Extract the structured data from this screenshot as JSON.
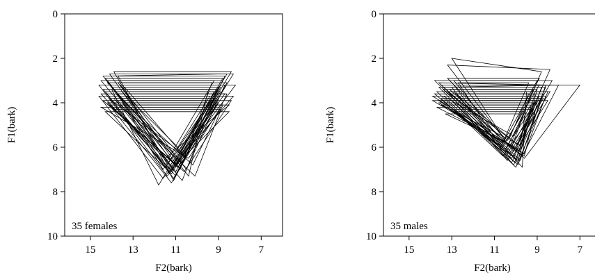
{
  "chart_data": [
    {
      "type": "line",
      "chart_kind": "vowel triangles (F2 vs F1, bark)",
      "xlabel": "F2(bark)",
      "ylabel": "F1(bark)",
      "xlim": [
        16.2,
        6.0
      ],
      "x_reversed": true,
      "ylim": [
        0,
        10
      ],
      "y_reversed": true,
      "xticks": [
        15,
        13,
        11,
        9,
        7
      ],
      "yticks": [
        0,
        2,
        4,
        6,
        8,
        10
      ],
      "annotation": "35 females",
      "triangles_count": 35,
      "triangles": [
        [
          [
            14.4,
            2.8
          ],
          [
            11.2,
            6.9
          ],
          [
            8.6,
            2.7
          ]
        ],
        [
          [
            14.2,
            3.0
          ],
          [
            11.0,
            7.1
          ],
          [
            8.8,
            3.0
          ]
        ],
        [
          [
            14.6,
            3.2
          ],
          [
            11.4,
            7.3
          ],
          [
            8.2,
            3.2
          ]
        ],
        [
          [
            14.0,
            3.3
          ],
          [
            10.9,
            6.6
          ],
          [
            9.0,
            3.3
          ]
        ],
        [
          [
            14.3,
            3.5
          ],
          [
            11.1,
            7.4
          ],
          [
            8.9,
            3.5
          ]
        ],
        [
          [
            14.5,
            3.6
          ],
          [
            11.3,
            7.0
          ],
          [
            8.7,
            3.6
          ]
        ],
        [
          [
            13.9,
            3.8
          ],
          [
            10.7,
            7.5
          ],
          [
            9.2,
            3.8
          ]
        ],
        [
          [
            14.2,
            4.0
          ],
          [
            11.0,
            6.8
          ],
          [
            9.0,
            4.0
          ]
        ],
        [
          [
            14.1,
            4.1
          ],
          [
            11.5,
            6.5
          ],
          [
            8.5,
            4.1
          ]
        ],
        [
          [
            13.8,
            4.2
          ],
          [
            11.2,
            7.2
          ],
          [
            9.4,
            4.2
          ]
        ],
        [
          [
            14.4,
            3.9
          ],
          [
            10.6,
            7.1
          ],
          [
            8.4,
            3.9
          ]
        ],
        [
          [
            14.0,
            3.4
          ],
          [
            11.8,
            7.7
          ],
          [
            9.1,
            3.4
          ]
        ],
        [
          [
            13.7,
            3.1
          ],
          [
            10.8,
            7.0
          ],
          [
            9.3,
            3.1
          ]
        ],
        [
          [
            14.3,
            2.9
          ],
          [
            11.1,
            6.7
          ],
          [
            8.8,
            2.9
          ]
        ],
        [
          [
            13.5,
            3.5
          ],
          [
            10.4,
            7.3
          ],
          [
            9.5,
            3.5
          ]
        ],
        [
          [
            14.6,
            3.7
          ],
          [
            11.6,
            7.4
          ],
          [
            8.3,
            3.7
          ]
        ],
        [
          [
            13.9,
            4.3
          ],
          [
            10.9,
            6.9
          ],
          [
            8.9,
            4.3
          ]
        ],
        [
          [
            14.2,
            4.0
          ],
          [
            11.2,
            7.6
          ],
          [
            9.0,
            4.0
          ]
        ],
        [
          [
            13.6,
            3.2
          ],
          [
            10.5,
            7.0
          ],
          [
            8.7,
            3.2
          ]
        ],
        [
          [
            14.5,
            3.0
          ],
          [
            11.4,
            6.6
          ],
          [
            9.2,
            3.0
          ]
        ],
        [
          [
            13.8,
            3.6
          ],
          [
            10.2,
            6.8
          ],
          [
            8.6,
            3.6
          ]
        ],
        [
          [
            14.1,
            3.8
          ],
          [
            11.0,
            7.3
          ],
          [
            9.1,
            3.8
          ]
        ],
        [
          [
            13.4,
            3.3
          ],
          [
            10.6,
            6.4
          ],
          [
            8.9,
            3.3
          ]
        ],
        [
          [
            14.3,
            4.4
          ],
          [
            11.3,
            7.1
          ],
          [
            8.5,
            4.4
          ]
        ],
        [
          [
            13.7,
            2.8
          ],
          [
            11.1,
            7.5
          ],
          [
            8.7,
            2.8
          ]
        ],
        [
          [
            14.0,
            3.9
          ],
          [
            10.8,
            6.2
          ],
          [
            9.3,
            3.9
          ]
        ],
        [
          [
            13.6,
            4.1
          ],
          [
            10.1,
            7.3
          ],
          [
            8.8,
            4.1
          ]
        ],
        [
          [
            14.4,
            3.4
          ],
          [
            11.5,
            6.9
          ],
          [
            9.0,
            3.4
          ]
        ],
        [
          [
            13.9,
            2.6
          ],
          [
            11.2,
            7.1
          ],
          [
            8.4,
            2.6
          ]
        ],
        [
          [
            13.3,
            3.7
          ],
          [
            10.9,
            6.0
          ],
          [
            9.4,
            3.7
          ]
        ],
        [
          [
            14.2,
            3.1
          ],
          [
            10.7,
            6.7
          ],
          [
            8.6,
            3.1
          ]
        ],
        [
          [
            13.8,
            3.5
          ],
          [
            11.3,
            7.2
          ],
          [
            9.2,
            3.5
          ]
        ],
        [
          [
            14.5,
            4.2
          ],
          [
            10.4,
            6.5
          ],
          [
            8.9,
            4.2
          ]
        ],
        [
          [
            14.1,
            2.7
          ],
          [
            11.0,
            6.9
          ],
          [
            8.3,
            2.7
          ]
        ],
        [
          [
            13.5,
            4.0
          ],
          [
            11.6,
            7.0
          ],
          [
            9.1,
            4.0
          ]
        ]
      ]
    },
    {
      "type": "line",
      "chart_kind": "vowel triangles (F2 vs F1, bark)",
      "xlabel": "F2(bark)",
      "ylabel": "F1(bark)",
      "xlim": [
        16.2,
        6.0
      ],
      "x_reversed": true,
      "ylim": [
        0,
        10
      ],
      "y_reversed": true,
      "xticks": [
        15,
        13,
        11,
        9,
        7
      ],
      "yticks": [
        0,
        2,
        4,
        6,
        8,
        10
      ],
      "annotation": "35 males",
      "triangles_count": 35,
      "triangles": [
        [
          [
            13.2,
            2.3
          ],
          [
            10.1,
            6.2
          ],
          [
            8.4,
            2.5
          ]
        ],
        [
          [
            13.6,
            3.1
          ],
          [
            9.8,
            6.6
          ],
          [
            8.6,
            3.2
          ]
        ],
        [
          [
            13.0,
            2.0
          ],
          [
            10.3,
            6.0
          ],
          [
            8.8,
            2.6
          ]
        ],
        [
          [
            13.4,
            3.3
          ],
          [
            9.7,
            6.4
          ],
          [
            8.0,
            3.2
          ]
        ],
        [
          [
            12.9,
            3.0
          ],
          [
            10.6,
            5.8
          ],
          [
            9.0,
            3.0
          ]
        ],
        [
          [
            13.8,
            3.6
          ],
          [
            9.9,
            6.8
          ],
          [
            8.7,
            3.6
          ]
        ],
        [
          [
            13.1,
            3.4
          ],
          [
            10.2,
            6.0
          ],
          [
            9.2,
            3.4
          ]
        ],
        [
          [
            13.5,
            3.2
          ],
          [
            9.6,
            6.5
          ],
          [
            7.0,
            3.2
          ]
        ],
        [
          [
            13.3,
            3.8
          ],
          [
            10.4,
            6.3
          ],
          [
            8.9,
            3.8
          ]
        ],
        [
          [
            13.7,
            3.5
          ],
          [
            10.0,
            6.9
          ],
          [
            8.5,
            3.5
          ]
        ],
        [
          [
            12.8,
            3.6
          ],
          [
            9.9,
            5.9
          ],
          [
            9.1,
            3.6
          ]
        ],
        [
          [
            13.2,
            4.1
          ],
          [
            10.5,
            6.1
          ],
          [
            9.3,
            4.1
          ]
        ],
        [
          [
            13.9,
            3.9
          ],
          [
            9.8,
            6.2
          ],
          [
            8.8,
            3.9
          ]
        ],
        [
          [
            13.0,
            3.3
          ],
          [
            10.2,
            6.7
          ],
          [
            8.6,
            3.3
          ]
        ],
        [
          [
            13.6,
            4.0
          ],
          [
            9.6,
            6.4
          ],
          [
            9.0,
            4.0
          ]
        ],
        [
          [
            12.7,
            3.1
          ],
          [
            10.7,
            6.0
          ],
          [
            9.4,
            3.1
          ]
        ],
        [
          [
            13.4,
            3.7
          ],
          [
            10.1,
            5.5
          ],
          [
            8.9,
            3.7
          ]
        ],
        [
          [
            13.1,
            4.3
          ],
          [
            9.9,
            6.6
          ],
          [
            9.2,
            4.3
          ]
        ],
        [
          [
            13.8,
            3.0
          ],
          [
            10.3,
            6.3
          ],
          [
            8.3,
            3.0
          ]
        ],
        [
          [
            13.3,
            4.5
          ],
          [
            10.0,
            6.0
          ],
          [
            9.1,
            4.5
          ]
        ],
        [
          [
            12.9,
            3.5
          ],
          [
            9.7,
            6.9
          ],
          [
            9.5,
            3.5
          ]
        ],
        [
          [
            13.5,
            3.8
          ],
          [
            10.6,
            6.4
          ],
          [
            8.7,
            3.8
          ]
        ],
        [
          [
            13.2,
            2.9
          ],
          [
            10.4,
            5.7
          ],
          [
            8.9,
            2.9
          ]
        ],
        [
          [
            13.7,
            4.2
          ],
          [
            9.8,
            6.1
          ],
          [
            9.3,
            4.2
          ]
        ],
        [
          [
            13.0,
            3.9
          ],
          [
            10.2,
            6.5
          ],
          [
            8.5,
            3.9
          ]
        ],
        [
          [
            13.4,
            3.4
          ],
          [
            9.9,
            6.6
          ],
          [
            9.0,
            3.4
          ]
        ],
        [
          [
            12.8,
            4.4
          ],
          [
            10.5,
            6.2
          ],
          [
            9.6,
            4.4
          ]
        ],
        [
          [
            13.6,
            3.3
          ],
          [
            10.1,
            6.8
          ],
          [
            8.8,
            3.3
          ]
        ],
        [
          [
            13.1,
            3.6
          ],
          [
            10.3,
            5.6
          ],
          [
            9.4,
            3.6
          ]
        ],
        [
          [
            13.9,
            3.7
          ],
          [
            9.6,
            6.3
          ],
          [
            8.6,
            3.7
          ]
        ],
        [
          [
            13.3,
            4.0
          ],
          [
            10.0,
            6.7
          ],
          [
            9.2,
            4.0
          ]
        ],
        [
          [
            12.9,
            3.2
          ],
          [
            10.7,
            6.1
          ],
          [
            8.9,
            3.2
          ]
        ],
        [
          [
            13.5,
            4.1
          ],
          [
            9.8,
            5.9
          ],
          [
            9.5,
            4.1
          ]
        ],
        [
          [
            13.2,
            3.5
          ],
          [
            10.4,
            6.6
          ],
          [
            8.4,
            3.5
          ]
        ],
        [
          [
            13.6,
            3.9
          ],
          [
            10.1,
            6.4
          ],
          [
            9.1,
            3.9
          ]
        ]
      ]
    }
  ]
}
